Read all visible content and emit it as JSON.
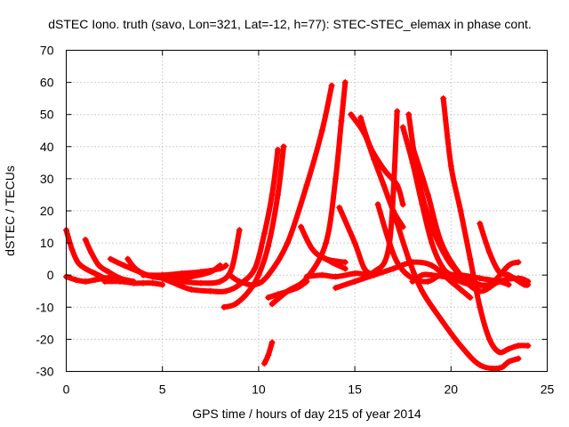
{
  "chart_data": {
    "type": "scatter",
    "title": "dSTEC Iono. truth (savo, Lon=321, Lat=-12, h=77): STEC-STEC_elemax in phase cont.",
    "xlabel": "GPS time / hours of day 215 of year 2014",
    "ylabel": "dSTEC  / TECUs",
    "xlim": [
      0,
      25
    ],
    "ylim": [
      -30,
      70
    ],
    "xticks": [
      0,
      5,
      10,
      15,
      20,
      25
    ],
    "yticks": [
      -30,
      -20,
      -10,
      0,
      10,
      20,
      30,
      40,
      50,
      60,
      70
    ],
    "grid": true,
    "legend": "none",
    "marker": "+",
    "color": "#ff0000",
    "series": [
      {
        "x": [
          0.0,
          0.3,
          0.6,
          1.0,
          1.5,
          2.0
        ],
        "y": [
          14,
          8,
          4,
          2,
          0.5,
          -1
        ]
      },
      {
        "x": [
          0.0,
          0.5,
          1.0,
          1.5,
          2.0,
          2.5
        ],
        "y": [
          -0.5,
          -1.5,
          -2,
          -1.5,
          -1,
          -0.5
        ]
      },
      {
        "x": [
          1.0,
          1.3,
          1.7,
          2.2,
          2.8,
          3.5
        ],
        "y": [
          11,
          7,
          3,
          1,
          -1,
          -2
        ]
      },
      {
        "x": [
          2.0,
          2.8,
          3.5,
          4.0,
          4.5,
          5.0
        ],
        "y": [
          -2,
          -2,
          -2.5,
          -2.5,
          -2.5,
          -3
        ]
      },
      {
        "x": [
          2.3,
          3.0,
          3.8,
          4.5,
          5.5,
          6.5,
          7.5,
          8.0
        ],
        "y": [
          5,
          3,
          1,
          -0.5,
          -1,
          -0.5,
          1,
          3
        ]
      },
      {
        "x": [
          3.2,
          3.6,
          4.2,
          5.0,
          6.0,
          7.0,
          8.0,
          8.6,
          9.0
        ],
        "y": [
          5,
          2,
          0,
          -1,
          -2,
          -2.5,
          -2,
          2,
          14
        ]
      },
      {
        "x": [
          4.0,
          5.0,
          6.0,
          7.0,
          8.0,
          8.3
        ],
        "y": [
          0,
          0,
          0.5,
          1,
          2,
          3
        ]
      },
      {
        "x": [
          5.0,
          5.8,
          6.5,
          7.5,
          8.3,
          9.0,
          9.8,
          10.3,
          10.7,
          11.0
        ],
        "y": [
          -1,
          -3,
          -4.5,
          -5,
          -5,
          -3,
          2,
          13,
          25,
          39
        ]
      },
      {
        "x": [
          8.2,
          8.8,
          9.5,
          10.0,
          10.5,
          11.0,
          11.3
        ],
        "y": [
          -10,
          -9,
          -5,
          0,
          9,
          25,
          40
        ]
      },
      {
        "x": [
          8.5,
          9.0,
          9.8,
          10.5,
          11.5,
          12.5,
          13.3,
          13.8
        ],
        "y": [
          0,
          -2,
          -3,
          0,
          10,
          28,
          45,
          59
        ]
      },
      {
        "x": [
          10.5,
          11.0,
          12.0,
          12.5
        ],
        "y": [
          -7,
          -6,
          -4,
          -2
        ]
      },
      {
        "x": [
          10.3,
          10.5,
          10.7
        ],
        "y": [
          -27.5,
          -25,
          -21
        ]
      },
      {
        "x": [
          10.7,
          11.5,
          12.5,
          13.5,
          14.0,
          14.3,
          14.5
        ],
        "y": [
          -9,
          -5,
          -1,
          10,
          30,
          48,
          60
        ]
      },
      {
        "x": [
          12.2,
          12.8,
          13.5,
          14.5
        ],
        "y": [
          15,
          8,
          5,
          4
        ]
      },
      {
        "x": [
          12.5,
          13.3,
          14.0,
          15.0,
          16.0,
          16.8,
          17.2
        ],
        "y": [
          -0.5,
          0,
          -0.5,
          0.5,
          1,
          10,
          51
        ]
      },
      {
        "x": [
          13.2,
          13.8,
          14.5
        ],
        "y": [
          6,
          4,
          2
        ]
      },
      {
        "x": [
          14.2,
          15.0,
          15.5,
          16.0
        ],
        "y": [
          21,
          10,
          2,
          0
        ]
      },
      {
        "x": [
          14.8,
          15.5,
          16.0,
          16.5,
          17.0,
          17.5
        ],
        "y": [
          50,
          44,
          36,
          28,
          20,
          15
        ]
      },
      {
        "x": [
          15.3,
          15.8,
          16.5,
          17.2,
          17.5
        ],
        "y": [
          49,
          40,
          33,
          28,
          22
        ]
      },
      {
        "x": [
          16.2,
          16.8,
          17.3,
          18.0,
          18.8,
          19.5,
          20.5,
          21.5,
          22.5,
          23.0
        ],
        "y": [
          22,
          10,
          3,
          -1,
          -2,
          0,
          0,
          -1,
          -2,
          -3
        ]
      },
      {
        "x": [
          17.5,
          18.0,
          18.5,
          19.0,
          19.5,
          20.0,
          21.0,
          22.0,
          23.0,
          23.5
        ],
        "y": [
          46,
          35,
          22,
          10,
          3,
          0,
          -2,
          -3,
          3,
          4
        ]
      },
      {
        "x": [
          17.8,
          18.3,
          19.0,
          19.8,
          20.5,
          21.0
        ],
        "y": [
          50,
          30,
          15,
          5,
          0,
          -2
        ]
      },
      {
        "x": [
          18.0,
          18.8,
          19.5,
          20.5,
          21.5,
          22.5,
          23.5,
          24.0
        ],
        "y": [
          40,
          25,
          10,
          0,
          -5,
          -2,
          -1,
          -2
        ]
      },
      {
        "x": [
          19.6,
          20.0,
          20.5,
          21.0,
          21.5,
          22.0,
          22.5,
          23.0,
          23.5,
          24.0
        ],
        "y": [
          55,
          34,
          20,
          5,
          -10,
          -20,
          -24,
          -23,
          -22,
          -22
        ]
      },
      {
        "x": [
          17.0,
          17.8,
          18.5,
          19.5,
          20.5,
          21.5,
          22.5,
          23.0,
          23.5
        ],
        "y": [
          20,
          5,
          -5,
          -14,
          -22,
          -28,
          -29,
          -27,
          -26
        ]
      },
      {
        "x": [
          21.5,
          22.0,
          22.5,
          23.0,
          23.8,
          24.0
        ],
        "y": [
          16,
          7,
          1,
          0,
          -3,
          -3
        ]
      },
      {
        "x": [
          14.0,
          15.0,
          16.0,
          17.0,
          18.0,
          19.0,
          20.0,
          21.0
        ],
        "y": [
          -4,
          -2,
          0,
          2,
          4,
          3,
          -2,
          -7
        ]
      },
      {
        "x": [
          18.0,
          18.5,
          19.0,
          20.0,
          21.0,
          22.0,
          23.0
        ],
        "y": [
          -2,
          0,
          0,
          -1,
          -3,
          -3,
          -1
        ]
      }
    ]
  }
}
